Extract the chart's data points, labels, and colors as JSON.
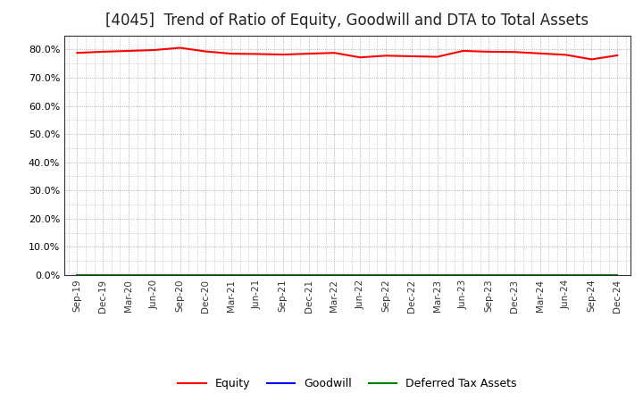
{
  "title": "[4045]  Trend of Ratio of Equity, Goodwill and DTA to Total Assets",
  "x_labels": [
    "Sep-19",
    "Dec-19",
    "Mar-20",
    "Jun-20",
    "Sep-20",
    "Dec-20",
    "Mar-21",
    "Jun-21",
    "Sep-21",
    "Dec-21",
    "Mar-22",
    "Jun-22",
    "Sep-22",
    "Dec-22",
    "Mar-23",
    "Jun-23",
    "Sep-23",
    "Dec-23",
    "Mar-24",
    "Jun-24",
    "Sep-24",
    "Dec-24"
  ],
  "equity": [
    78.8,
    79.2,
    79.5,
    79.8,
    80.6,
    79.3,
    78.5,
    78.4,
    78.2,
    78.5,
    78.8,
    77.2,
    77.8,
    77.6,
    77.4,
    79.5,
    79.2,
    79.1,
    78.6,
    78.1,
    76.5,
    77.9
  ],
  "goodwill": [
    0.0,
    0.0,
    0.0,
    0.0,
    0.0,
    0.0,
    0.0,
    0.0,
    0.0,
    0.0,
    0.0,
    0.0,
    0.0,
    0.0,
    0.0,
    0.0,
    0.0,
    0.0,
    0.0,
    0.0,
    0.0,
    0.0
  ],
  "dta": [
    0.0,
    0.0,
    0.0,
    0.0,
    0.0,
    0.0,
    0.0,
    0.0,
    0.0,
    0.0,
    0.0,
    0.0,
    0.0,
    0.0,
    0.0,
    0.0,
    0.0,
    0.0,
    0.0,
    0.0,
    0.0,
    0.0
  ],
  "equity_color": "#ff0000",
  "goodwill_color": "#0000ff",
  "dta_color": "#008000",
  "ylim": [
    0,
    85
  ],
  "yticks": [
    0,
    10,
    20,
    30,
    40,
    50,
    60,
    70,
    80
  ],
  "background_color": "#ffffff",
  "plot_bg_color": "#ffffff",
  "grid_color": "#999999",
  "title_fontsize": 12,
  "legend_labels": [
    "Equity",
    "Goodwill",
    "Deferred Tax Assets"
  ]
}
